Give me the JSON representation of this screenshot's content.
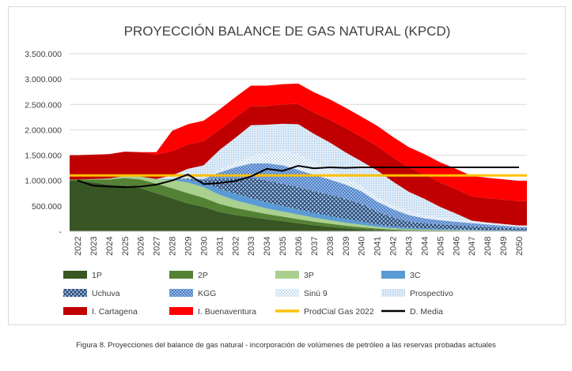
{
  "caption": "Figura 8. Proyecciones del balance de gas natural - incorporación de volúmenes de petróleo a las reservas probadas actuales",
  "chart_data": {
    "type": "area",
    "title": "PROYECCIÓN BALANCE DE GAS NATURAL (KPCD)",
    "xlabel": "",
    "ylabel": "",
    "ylim": [
      0,
      3500000
    ],
    "y_ticks": [
      "-",
      "500.000",
      "1.000.000",
      "1.500.000",
      "2.000.000",
      "2.500.000",
      "3.000.000",
      "3.500.000"
    ],
    "grid": true,
    "legend_position": "bottom",
    "x": [
      "2022",
      "2023",
      "2024",
      "2025",
      "2026",
      "2027",
      "2028",
      "2029",
      "2030",
      "2031",
      "2032",
      "2033",
      "2034",
      "2035",
      "2036",
      "2037",
      "2038",
      "2039",
      "2040",
      "2041",
      "2042",
      "2043",
      "2044",
      "2045",
      "2046",
      "2047",
      "2048",
      "2049",
      "2050"
    ],
    "stacked_series": [
      {
        "name": "1P",
        "color": "#375623",
        "pattern": "solid",
        "values": [
          1000000,
          960000,
          920000,
          900000,
          850000,
          750000,
          650000,
          550000,
          480000,
          380000,
          320000,
          280000,
          240000,
          200000,
          160000,
          120000,
          90000,
          60000,
          40000,
          25000,
          15000,
          10000,
          8000,
          6000,
          5000,
          4000,
          3000,
          2000,
          1000
        ]
      },
      {
        "name": "2P",
        "color": "#548235",
        "pattern": "solid",
        "values": [
          20000,
          60000,
          100000,
          150000,
          170000,
          190000,
          200000,
          200000,
          180000,
          160000,
          140000,
          120000,
          100000,
          90000,
          80000,
          70000,
          60000,
          50000,
          40000,
          30000,
          20000,
          15000,
          12000,
          10000,
          8000,
          6000,
          5000,
          4000,
          3000
        ]
      },
      {
        "name": "3P",
        "color": "#a9d08e",
        "pattern": "solid",
        "values": [
          0,
          10000,
          20000,
          40000,
          60000,
          90000,
          160000,
          210000,
          210000,
          180000,
          150000,
          130000,
          110000,
          100000,
          90000,
          80000,
          70000,
          60000,
          50000,
          35000,
          25000,
          20000,
          15000,
          12000,
          10000,
          8000,
          6000,
          5000,
          4000
        ]
      },
      {
        "name": "3C",
        "color": "#5b9bd5",
        "pattern": "solid",
        "values": [
          0,
          0,
          0,
          0,
          0,
          0,
          20000,
          60000,
          80000,
          120000,
          130000,
          125000,
          120000,
          110000,
          100000,
          90000,
          80000,
          70000,
          60000,
          45000,
          35000,
          25000,
          20000,
          18000,
          15000,
          12000,
          10000,
          8000,
          6000
        ]
      },
      {
        "name": "Uchuva",
        "color": "#2f5597",
        "pattern": "crosshatch",
        "values": [
          0,
          0,
          0,
          0,
          0,
          0,
          0,
          20000,
          60000,
          200000,
          300000,
          400000,
          430000,
          440000,
          440000,
          430000,
          420000,
          400000,
          350000,
          250000,
          180000,
          120000,
          100000,
          90000,
          80000,
          70000,
          60000,
          50000,
          40000
        ]
      },
      {
        "name": "KGG",
        "color": "#4472c4",
        "pattern": "dense",
        "values": [
          0,
          0,
          0,
          0,
          0,
          0,
          0,
          0,
          20000,
          120000,
          220000,
          280000,
          340000,
          360000,
          340000,
          320000,
          300000,
          280000,
          250000,
          200000,
          160000,
          130000,
          100000,
          80000,
          70000,
          60000,
          50000,
          40000,
          30000
        ]
      },
      {
        "name": "Sinú 9",
        "color": "#9dc3e6",
        "pattern": "light",
        "values": [
          0,
          0,
          0,
          0,
          0,
          0,
          0,
          0,
          0,
          50000,
          100000,
          150000,
          200000,
          300000,
          300000,
          260000,
          220000,
          150000,
          100000,
          90000,
          80000,
          70000,
          60000,
          55000,
          50000,
          45000,
          40000,
          35000,
          30000
        ]
      },
      {
        "name": "Prospectivo",
        "color": "#bdd7ee",
        "pattern": "dots",
        "values": [
          0,
          0,
          0,
          0,
          0,
          0,
          70000,
          190000,
          270000,
          390000,
          480000,
          605000,
          560000,
          520000,
          600000,
          550000,
          510000,
          485000,
          490000,
          525000,
          465000,
          390000,
          325000,
          209000,
          112000,
          5000,
          0,
          0,
          0
        ]
      },
      {
        "name": "I. Cartagena",
        "color": "#c00000",
        "pattern": "solid",
        "values": [
          480000,
          480000,
          480000,
          480000,
          480000,
          480000,
          480000,
          480000,
          480000,
          400000,
          400000,
          380000,
          370000,
          380000,
          400000,
          420000,
          450000,
          480000,
          480000,
          480000,
          480000,
          480000,
          480000,
          480000,
          480000,
          480000,
          480000,
          480000,
          480000
        ]
      },
      {
        "name": "I. Buenaventura",
        "color": "#ff0000",
        "pattern": "solid",
        "values": [
          0,
          0,
          0,
          0,
          0,
          50000,
          400000,
          400000,
          400000,
          400000,
          400000,
          400000,
          400000,
          400000,
          400000,
          400000,
          400000,
          400000,
          400000,
          400000,
          400000,
          400000,
          400000,
          400000,
          400000,
          400000,
          400000,
          400000,
          400000
        ]
      }
    ],
    "line_series": [
      {
        "name": "ProdCial Gas 2022",
        "color": "#ffc000",
        "width": 3,
        "values": [
          1100000,
          1100000,
          1100000,
          1100000,
          1100000,
          1100000,
          1100000,
          1100000,
          1100000,
          1100000,
          1100000,
          1100000,
          1100000,
          1100000,
          1100000,
          1100000,
          1100000,
          1100000,
          1100000,
          1100000,
          1100000,
          1100000,
          1100000,
          1100000,
          1100000,
          1100000,
          1100000,
          1100000,
          1100000
        ]
      },
      {
        "name": "D. Media",
        "color": "#000000",
        "width": 2,
        "values": [
          1000000,
          900000,
          880000,
          870000,
          880000,
          920000,
          1000000,
          1120000,
          930000,
          950000,
          990000,
          1080000,
          1230000,
          1190000,
          1290000,
          1240000,
          1260000,
          1250000,
          1260000,
          1260000,
          1260000,
          1260000,
          1260000,
          1260000,
          1260000,
          1260000,
          1260000,
          1260000,
          1260000
        ]
      }
    ],
    "legend": [
      "1P",
      "2P",
      "3P",
      "3C",
      "Uchuva",
      "KGG",
      "Sinú 9",
      "Prospectivo",
      "I. Cartagena",
      "I. Buenaventura",
      "ProdCial Gas 2022",
      "D. Media"
    ]
  }
}
